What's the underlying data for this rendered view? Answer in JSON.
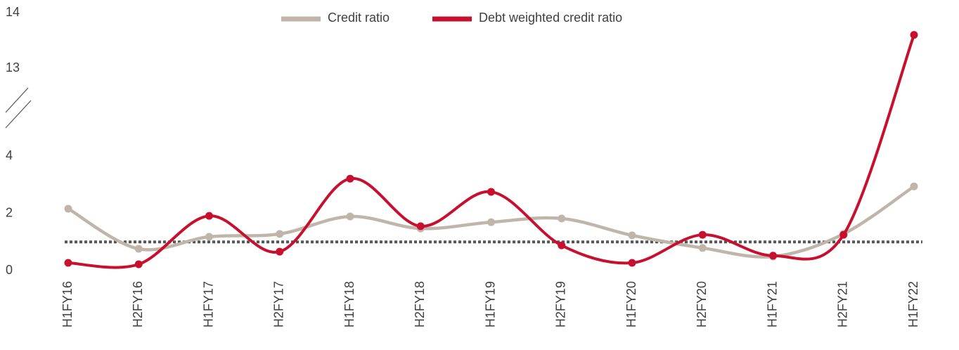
{
  "chart_data": {
    "type": "line",
    "categories": [
      "H1FY16",
      "H2FY16",
      "H1FY17",
      "H2FY17",
      "H1FY18",
      "H2FY18",
      "H1FY19",
      "H2FY19",
      "H1FY20",
      "H2FY20",
      "H1FY21",
      "H2FY21",
      "H1FY22"
    ],
    "series": [
      {
        "name": "Credit ratio",
        "color": "#bfb6a9",
        "values": [
          2.16,
          0.76,
          1.18,
          1.28,
          1.89,
          1.47,
          1.69,
          1.82,
          1.23,
          0.79,
          0.49,
          1.28,
          2.94
        ]
      },
      {
        "name": "Debt weighted credit ratio",
        "color": "#c8102e",
        "values": [
          0.27,
          0.22,
          1.91,
          0.66,
          3.21,
          1.55,
          2.75,
          0.88,
          0.27,
          1.25,
          0.52,
          1.25,
          13.6
        ]
      }
    ],
    "ylim": [
      0,
      14
    ],
    "yticks": [
      0,
      2,
      4,
      13,
      14
    ],
    "y_break": [
      4,
      13
    ],
    "reference_line": 1,
    "legend": "top"
  }
}
